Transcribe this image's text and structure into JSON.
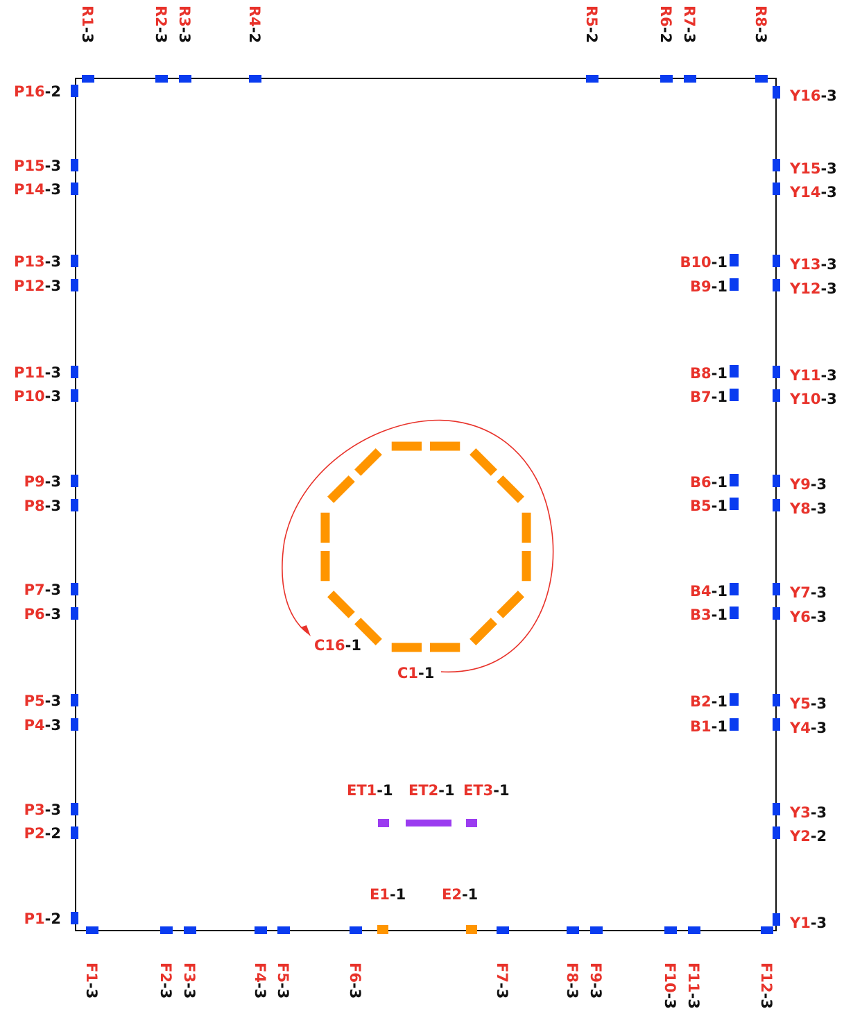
{
  "colors": {
    "label_id": "#e8332b",
    "label_count": "#111111",
    "blue_marker": "#0a3cf0",
    "orange_marker": "#ff9500",
    "purple_marker": "#9b3cf0",
    "border": "#111111",
    "arrow": "#e8332b"
  },
  "sep": "-",
  "top": [
    {
      "id": "R1",
      "count": "3"
    },
    {
      "id": "R2",
      "count": "3"
    },
    {
      "id": "R3",
      "count": "3"
    },
    {
      "id": "R4",
      "count": "2"
    },
    {
      "id": "R5",
      "count": "2"
    },
    {
      "id": "R6",
      "count": "2"
    },
    {
      "id": "R7",
      "count": "3"
    },
    {
      "id": "R8",
      "count": "3"
    }
  ],
  "bottom": [
    {
      "id": "F1",
      "count": "3"
    },
    {
      "id": "F2",
      "count": "3"
    },
    {
      "id": "F3",
      "count": "3"
    },
    {
      "id": "F4",
      "count": "3"
    },
    {
      "id": "F5",
      "count": "3"
    },
    {
      "id": "F6",
      "count": "3"
    },
    {
      "id": "F7",
      "count": "3"
    },
    {
      "id": "F8",
      "count": "3"
    },
    {
      "id": "F9",
      "count": "3"
    },
    {
      "id": "F10",
      "count": "3"
    },
    {
      "id": "F11",
      "count": "3"
    },
    {
      "id": "F12",
      "count": "3"
    }
  ],
  "left": [
    {
      "id": "P16",
      "count": "2"
    },
    {
      "id": "P15",
      "count": "3"
    },
    {
      "id": "P14",
      "count": "3"
    },
    {
      "id": "P13",
      "count": "3"
    },
    {
      "id": "P12",
      "count": "3"
    },
    {
      "id": "P11",
      "count": "3"
    },
    {
      "id": "P10",
      "count": "3"
    },
    {
      "id": "P9",
      "count": "3"
    },
    {
      "id": "P8",
      "count": "3"
    },
    {
      "id": "P7",
      "count": "3"
    },
    {
      "id": "P6",
      "count": "3"
    },
    {
      "id": "P5",
      "count": "3"
    },
    {
      "id": "P4",
      "count": "3"
    },
    {
      "id": "P3",
      "count": "3"
    },
    {
      "id": "P2",
      "count": "2"
    },
    {
      "id": "P1",
      "count": "2"
    }
  ],
  "right": [
    {
      "id": "Y16",
      "count": "3"
    },
    {
      "id": "Y15",
      "count": "3"
    },
    {
      "id": "Y14",
      "count": "3"
    },
    {
      "id": "Y13",
      "count": "3"
    },
    {
      "id": "Y12",
      "count": "3"
    },
    {
      "id": "Y11",
      "count": "3"
    },
    {
      "id": "Y10",
      "count": "3"
    },
    {
      "id": "Y9",
      "count": "3"
    },
    {
      "id": "Y8",
      "count": "3"
    },
    {
      "id": "Y7",
      "count": "3"
    },
    {
      "id": "Y6",
      "count": "3"
    },
    {
      "id": "Y5",
      "count": "3"
    },
    {
      "id": "Y4",
      "count": "3"
    },
    {
      "id": "Y3",
      "count": "3"
    },
    {
      "id": "Y2",
      "count": "2"
    },
    {
      "id": "Y1",
      "count": "3"
    }
  ],
  "inner_b": [
    {
      "id": "B10",
      "count": "1"
    },
    {
      "id": "B9",
      "count": "1"
    },
    {
      "id": "B8",
      "count": "1"
    },
    {
      "id": "B7",
      "count": "1"
    },
    {
      "id": "B6",
      "count": "1"
    },
    {
      "id": "B5",
      "count": "1"
    },
    {
      "id": "B4",
      "count": "1"
    },
    {
      "id": "B3",
      "count": "1"
    },
    {
      "id": "B2",
      "count": "1"
    },
    {
      "id": "B1",
      "count": "1"
    }
  ],
  "circle_labels": [
    {
      "id": "C16",
      "count": "1"
    },
    {
      "id": "C1",
      "count": "1"
    }
  ],
  "et_labels": [
    {
      "id": "ET1",
      "count": "1"
    },
    {
      "id": "ET2",
      "count": "1"
    },
    {
      "id": "ET3",
      "count": "1"
    }
  ],
  "e_labels": [
    {
      "id": "E1",
      "count": "1"
    },
    {
      "id": "E2",
      "count": "1"
    }
  ]
}
